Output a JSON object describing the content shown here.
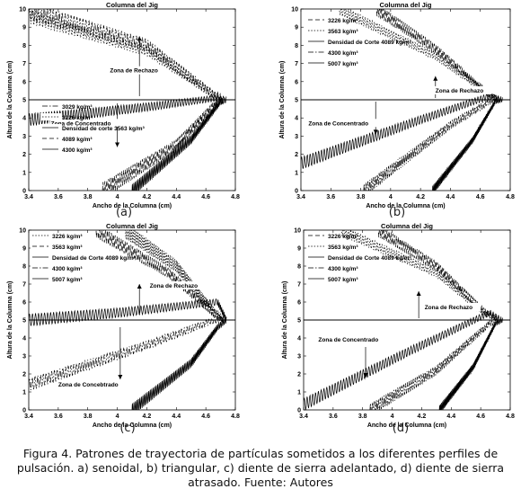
{
  "figure": {
    "caption": "Figura 4. Patrones de trayectoria de partículas sometidos a los diferentes perfiles de pulsación. a) senoidal, b) triangular, c) diente de sierra adelantado, d) diente de sierra atrasado. Fuente: Autores"
  },
  "chart_data": [
    {
      "type": "line",
      "panel_label": "(a)",
      "title": "Columna del Jig",
      "xlabel": "Ancho de la Columna (cm)",
      "ylabel": "Altura de la Columna (cm)",
      "xlim": [
        3.4,
        4.8
      ],
      "ylim": [
        0,
        10
      ],
      "xticks": [
        3.4,
        3.6,
        3.8,
        4,
        4.2,
        4.4,
        4.6,
        4.8
      ],
      "yticks": [
        0,
        1,
        2,
        3,
        4,
        5,
        6,
        7,
        8,
        9,
        10
      ],
      "grid": false,
      "legend_position": "lower-left",
      "cut_line_y": 5,
      "annotations": [
        {
          "text": "Zona de Rechazo",
          "x": 3.95,
          "y": 6.5,
          "arrow_to": [
            4.15,
            8.5
          ],
          "arrow_from": [
            4.15,
            5.2
          ]
        },
        {
          "text": "Zona de Concentrado",
          "x": 3.55,
          "y": 3.6,
          "arrow_to": [
            4.0,
            2.4
          ],
          "arrow_from": [
            4.0,
            4.8
          ]
        }
      ],
      "series": [
        {
          "name": "3029 kg/m³",
          "style": "dashdot",
          "path": [
            [
              3.4,
              9.9
            ],
            [
              4.2,
              8.0
            ],
            [
              4.65,
              5.3
            ],
            [
              4.7,
              5.1
            ]
          ],
          "oscillation": 0.5
        },
        {
          "name": "3226 kg/m³",
          "style": "dotted",
          "path": [
            [
              3.4,
              9.6
            ],
            [
              4.2,
              7.7
            ],
            [
              4.65,
              5.3
            ],
            [
              4.7,
              5.1
            ]
          ],
          "oscillation": 0.4
        },
        {
          "name": "Densidad de corte 3563 kg/m³",
          "style": "solid",
          "path": [
            [
              3.4,
              3.9
            ],
            [
              4.2,
              4.6
            ],
            [
              4.68,
              5.1
            ],
            [
              4.72,
              5.0
            ]
          ],
          "oscillation": 0.35
        },
        {
          "name": "4089 kg/m³",
          "style": "dashed",
          "path": [
            [
              3.9,
              0.0
            ],
            [
              4.4,
              2.5
            ],
            [
              4.68,
              4.9
            ],
            [
              4.72,
              5.0
            ]
          ],
          "oscillation": 0.45
        },
        {
          "name": "4300 kg/m³",
          "style": "solid",
          "path": [
            [
              4.1,
              0.0
            ],
            [
              4.5,
              2.8
            ],
            [
              4.7,
              4.9
            ],
            [
              4.74,
              5.0
            ]
          ],
          "oscillation": 0.35
        }
      ]
    },
    {
      "type": "line",
      "panel_label": "(b)",
      "title": "Columna del Jig",
      "xlabel": "Ancho de la Columna (cm)",
      "ylabel": "Altura de la Columna (cm)",
      "xlim": [
        3.4,
        4.8
      ],
      "ylim": [
        0,
        10
      ],
      "xticks": [
        3.4,
        3.6,
        3.8,
        4,
        4.2,
        4.4,
        4.6,
        4.8
      ],
      "yticks": [
        0,
        1,
        2,
        3,
        4,
        5,
        6,
        7,
        8,
        9,
        10
      ],
      "grid": false,
      "legend_position": "upper-left",
      "cut_line_y": 5,
      "annotations": [
        {
          "text": "Zona de Rechazo",
          "x": 4.3,
          "y": 5.4,
          "arrow_to": [
            4.3,
            6.3
          ],
          "arrow_from": [
            4.3,
            5.1
          ]
        },
        {
          "text": "Zona de Concentrado",
          "x": 3.45,
          "y": 3.6,
          "arrow_to": [
            3.9,
            3.1
          ],
          "arrow_from": [
            3.9,
            4.9
          ]
        }
      ],
      "series": [
        {
          "name": "3226 kg/m³",
          "style": "dashed",
          "path": [
            [
              3.9,
              10.0
            ],
            [
              4.3,
              7.8
            ],
            [
              4.66,
              5.3
            ],
            [
              4.72,
              5.0
            ]
          ],
          "oscillation": 0.35
        },
        {
          "name": "3563 kg/m³",
          "style": "dotted",
          "path": [
            [
              3.65,
              10.0
            ],
            [
              4.3,
              7.4
            ],
            [
              4.66,
              5.3
            ],
            [
              4.72,
              5.0
            ]
          ],
          "oscillation": 0.3
        },
        {
          "name": "Densidad de Corte 4089 kg/m³",
          "style": "solid",
          "path": [
            [
              3.4,
              1.5
            ],
            [
              4.2,
              3.9
            ],
            [
              4.66,
              5.2
            ],
            [
              4.74,
              5.0
            ]
          ],
          "oscillation": 0.35
        },
        {
          "name": "4300 kg/m³",
          "style": "dashdot",
          "path": [
            [
              3.82,
              0.0
            ],
            [
              4.4,
              3.6
            ],
            [
              4.68,
              5.0
            ],
            [
              4.74,
              5.0
            ]
          ],
          "oscillation": 0.35
        },
        {
          "name": "5007 kg/m³",
          "style": "solid",
          "path": [
            [
              4.28,
              0.0
            ],
            [
              4.55,
              2.8
            ],
            [
              4.7,
              4.9
            ],
            [
              4.75,
              5.0
            ]
          ],
          "oscillation": 0.25
        }
      ]
    },
    {
      "type": "line",
      "panel_label": "(c)",
      "title": "Columna del Jig",
      "xlabel": "Ancho de la Columna (cm)",
      "ylabel": "Altura de la Columna (cm)",
      "xlim": [
        3.4,
        4.8
      ],
      "ylim": [
        0,
        10
      ],
      "xticks": [
        3.4,
        3.6,
        3.8,
        4,
        4.2,
        4.4,
        4.6,
        4.8
      ],
      "yticks": [
        0,
        1,
        2,
        3,
        4,
        5,
        6,
        7,
        8,
        9,
        10
      ],
      "grid": false,
      "legend_position": "upper-left",
      "cut_line_y": 5,
      "annotations": [
        {
          "text": "Zona de Rechazo",
          "x": 4.22,
          "y": 6.8,
          "arrow_to": [
            4.15,
            7.0
          ],
          "arrow_from": [
            4.15,
            5.4
          ]
        },
        {
          "text": "Zona de Concebtrado",
          "x": 3.6,
          "y": 1.3,
          "arrow_to": [
            4.02,
            1.7
          ],
          "arrow_from": [
            4.02,
            4.6
          ]
        }
      ],
      "series": [
        {
          "name": "3226 kg/m³",
          "style": "dotted",
          "path": [
            [
              4.05,
              10.0
            ],
            [
              4.4,
              8.0
            ],
            [
              4.65,
              5.5
            ],
            [
              4.72,
              5.0
            ]
          ],
          "oscillation": 0.45
        },
        {
          "name": "3563 kg/m³",
          "style": "dashed",
          "path": [
            [
              3.85,
              10.0
            ],
            [
              4.35,
              7.6
            ],
            [
              4.65,
              5.4
            ],
            [
              4.72,
              5.0
            ]
          ],
          "oscillation": 0.4
        },
        {
          "name": "Densidad de Corte 4089 kg/m³",
          "style": "solid",
          "path": [
            [
              3.4,
              5.0
            ],
            [
              4.0,
              5.4
            ],
            [
              4.68,
              6.0
            ],
            [
              4.74,
              5.0
            ]
          ],
          "oscillation": 0.35
        },
        {
          "name": "4300 kg/m³",
          "style": "dashdot",
          "path": [
            [
              3.4,
              1.4
            ],
            [
              4.2,
              3.6
            ],
            [
              4.66,
              5.0
            ],
            [
              4.72,
              5.0
            ]
          ],
          "oscillation": 0.35
        },
        {
          "name": "5007 kg/m³",
          "style": "solid",
          "path": [
            [
              4.1,
              0.0
            ],
            [
              4.5,
              2.6
            ],
            [
              4.68,
              4.6
            ],
            [
              4.74,
              5.0
            ]
          ],
          "oscillation": 0.35
        }
      ]
    },
    {
      "type": "line",
      "panel_label": "(d)",
      "title": "Columna del Jig",
      "xlabel": "Ancho de la Columna (cm)",
      "ylabel": "Altura de la Columna (cm)",
      "xlim": [
        3.4,
        4.8
      ],
      "ylim": [
        0,
        10
      ],
      "xticks": [
        3.4,
        3.6,
        3.8,
        4,
        4.2,
        4.4,
        4.6,
        4.8
      ],
      "yticks": [
        0,
        1,
        2,
        3,
        4,
        5,
        6,
        7,
        8,
        9,
        10
      ],
      "grid": false,
      "legend_position": "upper-left",
      "cut_line_y": 5,
      "annotations": [
        {
          "text": "Zona de Rechazo",
          "x": 4.22,
          "y": 5.6,
          "arrow_to": [
            4.18,
            6.6
          ],
          "arrow_from": [
            4.18,
            5.1
          ]
        },
        {
          "text": "Zona de Concentrado",
          "x": 3.5,
          "y": 3.8,
          "arrow_to": [
            3.82,
            1.8
          ],
          "arrow_from": [
            3.82,
            3.5
          ]
        }
      ],
      "series": [
        {
          "name": "3226 kg/m³",
          "style": "dashed",
          "path": [
            [
              3.9,
              10.0
            ],
            [
              4.3,
              8.0
            ],
            [
              4.62,
              5.5
            ],
            [
              4.72,
              5.0
            ]
          ],
          "oscillation": 0.35
        },
        {
          "name": "3563 kg/m³",
          "style": "dotted",
          "path": [
            [
              3.65,
              10.0
            ],
            [
              4.3,
              7.6
            ],
            [
              4.62,
              5.4
            ],
            [
              4.72,
              5.0
            ]
          ],
          "oscillation": 0.3
        },
        {
          "name": "Densidad de Corte 4089 kg/m³",
          "style": "solid",
          "path": [
            [
              3.4,
              0.3
            ],
            [
              4.1,
              3.2
            ],
            [
              4.66,
              5.4
            ],
            [
              4.74,
              5.0
            ]
          ],
          "oscillation": 0.35
        },
        {
          "name": "4300 kg/m³",
          "style": "dashdot",
          "path": [
            [
              3.85,
              0.0
            ],
            [
              4.3,
              2.2
            ],
            [
              4.66,
              4.8
            ],
            [
              4.72,
              5.0
            ]
          ],
          "oscillation": 0.35
        },
        {
          "name": "5007 kg/m³",
          "style": "solid",
          "path": [
            [
              4.32,
              0.0
            ],
            [
              4.55,
              2.4
            ],
            [
              4.7,
              4.8
            ],
            [
              4.75,
              5.0
            ]
          ],
          "oscillation": 0.25
        }
      ]
    }
  ]
}
